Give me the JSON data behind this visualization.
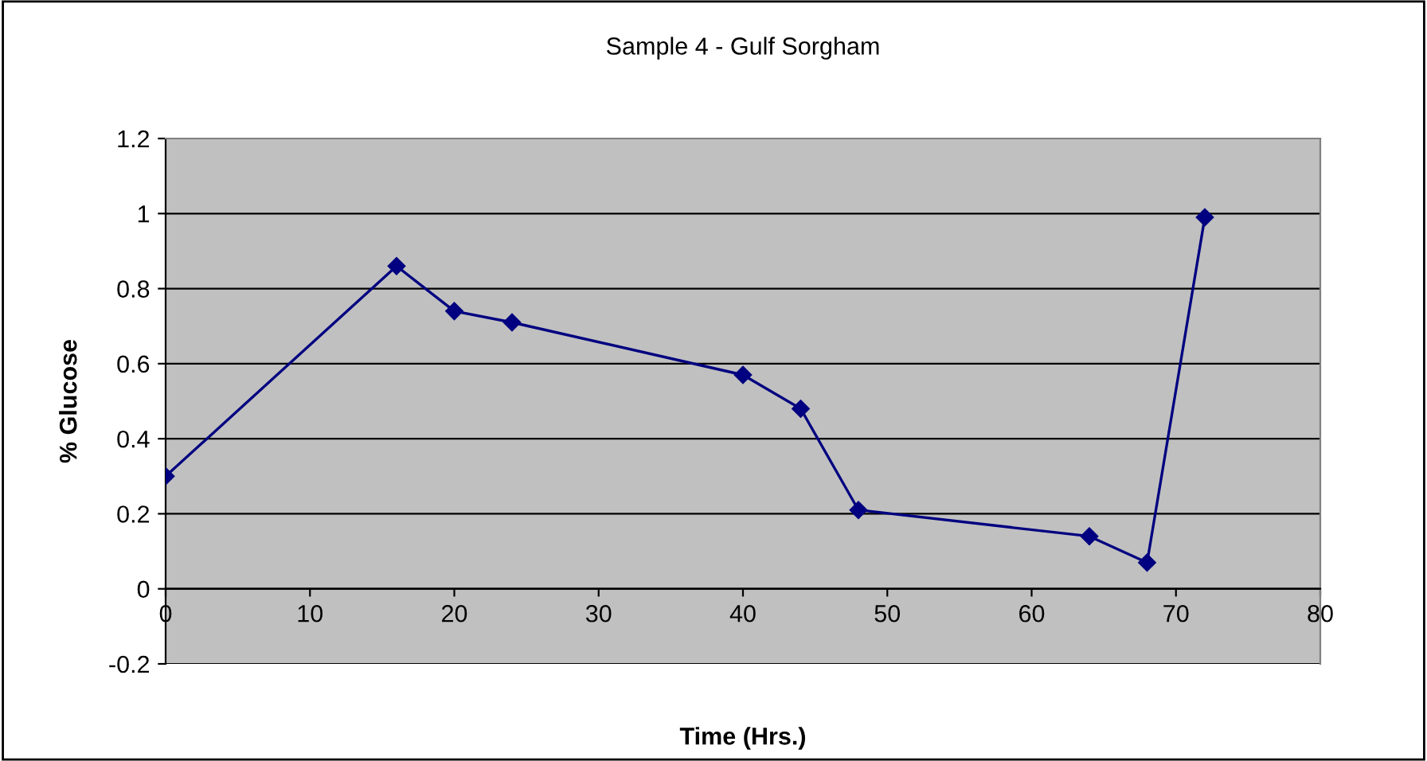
{
  "chart_data": {
    "type": "line",
    "title": "Sample 4 - Gulf Sorgham",
    "xlabel": "Time (Hrs.)",
    "ylabel": "% Glucose",
    "x": [
      0,
      16,
      20,
      24,
      40,
      44,
      48,
      64,
      68,
      72
    ],
    "series": [
      {
        "color": "#000080",
        "values": [
          0.3,
          0.86,
          0.74,
          0.71,
          0.57,
          0.48,
          0.21,
          0.14,
          0.07,
          0.99
        ]
      }
    ],
    "xlim": [
      0,
      80
    ],
    "xticks": [
      0,
      10,
      20,
      30,
      40,
      50,
      60,
      70,
      80
    ],
    "ylim": [
      -0.2,
      1.2
    ],
    "yticks": [
      -0.2,
      0,
      0.2,
      0.4,
      0.6,
      0.8,
      1,
      1.2
    ],
    "grid": "y",
    "marker": "diamond",
    "line_style": "solid"
  }
}
